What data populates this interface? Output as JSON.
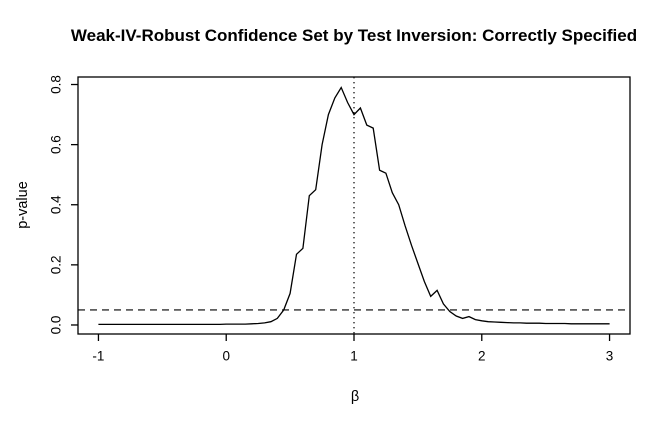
{
  "chart_data": {
    "type": "line",
    "title": "Weak-IV-Robust Confidence Set by Test Inversion: Correctly Specified",
    "xlabel": "β",
    "ylabel": "p-value",
    "xlim": [
      -1.16,
      3.16
    ],
    "ylim": [
      -0.03,
      0.825
    ],
    "grid": false,
    "legend": "none",
    "x_ticks": {
      "values": [
        -1,
        0,
        1,
        2,
        3
      ],
      "labels": [
        "-1",
        "0",
        "1",
        "2",
        "3"
      ]
    },
    "y_ticks": {
      "values": [
        0.0,
        0.2,
        0.4,
        0.6,
        0.8
      ],
      "labels": [
        "0.0",
        "0.2",
        "0.4",
        "0.6",
        "0.8"
      ]
    },
    "reference_lines": [
      {
        "orientation": "horizontal",
        "value": 0.05,
        "linestyle": "dashed",
        "color": "#000000"
      },
      {
        "orientation": "vertical",
        "value": 1.0,
        "linestyle": "dotted",
        "color": "#000000"
      }
    ],
    "series": [
      {
        "name": "p-value",
        "color": "#000000",
        "x": [
          -1.0,
          -0.95,
          -0.9,
          -0.85,
          -0.8,
          -0.75,
          -0.7,
          -0.65,
          -0.6,
          -0.55,
          -0.5,
          -0.45,
          -0.4,
          -0.35,
          -0.3,
          -0.25,
          -0.2,
          -0.15,
          -0.1,
          -0.05,
          0.0,
          0.05,
          0.1,
          0.15,
          0.2,
          0.25,
          0.3,
          0.35,
          0.4,
          0.45,
          0.5,
          0.55,
          0.6,
          0.65,
          0.7,
          0.75,
          0.8,
          0.85,
          0.9,
          0.95,
          1.0,
          1.05,
          1.1,
          1.15,
          1.2,
          1.25,
          1.3,
          1.35,
          1.4,
          1.45,
          1.5,
          1.55,
          1.6,
          1.65,
          1.7,
          1.75,
          1.8,
          1.85,
          1.9,
          1.95,
          2.0,
          2.05,
          2.1,
          2.15,
          2.2,
          2.25,
          2.3,
          2.35,
          2.4,
          2.45,
          2.5,
          2.55,
          2.6,
          2.65,
          2.7,
          2.75,
          2.8,
          2.85,
          2.9,
          2.95,
          3.0
        ],
        "y": [
          0.002,
          0.002,
          0.002,
          0.002,
          0.002,
          0.002,
          0.002,
          0.002,
          0.002,
          0.002,
          0.002,
          0.002,
          0.002,
          0.002,
          0.002,
          0.002,
          0.002,
          0.002,
          0.002,
          0.002,
          0.003,
          0.003,
          0.003,
          0.003,
          0.004,
          0.005,
          0.007,
          0.011,
          0.022,
          0.05,
          0.105,
          0.235,
          0.255,
          0.43,
          0.45,
          0.6,
          0.7,
          0.755,
          0.79,
          0.74,
          0.7,
          0.722,
          0.665,
          0.655,
          0.515,
          0.505,
          0.44,
          0.4,
          0.33,
          0.265,
          0.205,
          0.145,
          0.095,
          0.115,
          0.07,
          0.045,
          0.03,
          0.022,
          0.028,
          0.018,
          0.014,
          0.011,
          0.01,
          0.009,
          0.008,
          0.007,
          0.007,
          0.006,
          0.006,
          0.006,
          0.005,
          0.005,
          0.005,
          0.005,
          0.004,
          0.004,
          0.004,
          0.004,
          0.004,
          0.004,
          0.004
        ]
      }
    ]
  }
}
